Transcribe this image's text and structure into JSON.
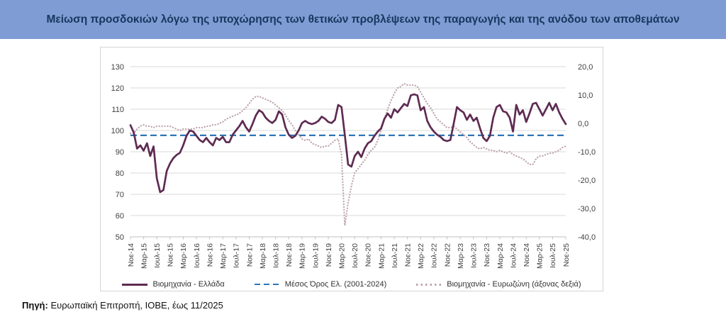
{
  "title": "Μείωση προσδοκιών λόγω της υποχώρησης των θετικών προβλέψεων της παραγωγής και της ανόδου των αποθεμάτων",
  "source": {
    "label": "Πηγή:",
    "text": " Ευρωπαϊκή Επιτροπή, ΙΟΒΕ, έως 11/2025"
  },
  "colors": {
    "banner_bg": "#7f9cd4",
    "banner_text": "#17375e",
    "grid": "#d9d9d9",
    "axis_line": "#bfbfbf",
    "axis_text": "#404040",
    "card_border": "#d4d4d4"
  },
  "chart_data": {
    "type": "line",
    "x_unit": "month",
    "x_start": "Νοε-14",
    "x_end": "Νοε-25",
    "x_tick_step": 4,
    "x_tick_labels": [
      "Νοε-14",
      "Μαρ-15",
      "Ιουλ-15",
      "Νοε-15",
      "Μαρ-16",
      "Ιουλ-16",
      "Νοε-16",
      "Μαρ-17",
      "Ιουλ-17",
      "Νοε-17",
      "Μαρ-18",
      "Ιουλ-18",
      "Νοε-18",
      "Μαρ-19",
      "Ιουλ-19",
      "Νοε-19",
      "Μαρ-20",
      "Ιουλ-20",
      "Νοε-20",
      "Μαρ-21",
      "Ιουλ-21",
      "Νοε-21",
      "Μαρ-22",
      "Ιουλ-22",
      "Νοε-22",
      "Μαρ-23",
      "Ιουλ-23",
      "Νοε-23",
      "Μαρ-24",
      "Ιουλ-24",
      "Νοε-24",
      "Μαρ-25",
      "Ιουλ-25",
      "Νοε-25"
    ],
    "left_axis": {
      "min": 50,
      "max": 130,
      "ticks": [
        130,
        120,
        110,
        100,
        90,
        80,
        70,
        60,
        50
      ]
    },
    "right_axis": {
      "min": -40,
      "max": 20,
      "ticks": [
        20,
        10,
        0,
        -10,
        -20,
        -30,
        -40
      ],
      "tick_labels": [
        "20,0",
        "10,0",
        "0,0",
        "-10,0",
        "-20,0",
        "-30,0",
        "-40,0"
      ]
    },
    "grid": true,
    "legend_position": "bottom",
    "series": [
      {
        "name": "Βιομηχανία - Ελλάδα",
        "axis": "left",
        "style": "solid",
        "color": "#5e2b52",
        "values": [
          102.5,
          99,
          91.5,
          93,
          90.5,
          94,
          88,
          92.5,
          77.5,
          71,
          72,
          81,
          84.5,
          87,
          88.5,
          89.5,
          93,
          97.5,
          100,
          99.5,
          97.5,
          95.5,
          94.5,
          96.5,
          94.5,
          93,
          96.5,
          95.5,
          97,
          94.5,
          94.5,
          98,
          100,
          102,
          104.5,
          101.5,
          99.5,
          103,
          107,
          109.5,
          108.5,
          106,
          104.5,
          103.5,
          105,
          109,
          107.5,
          101.5,
          98,
          96.5,
          97.5,
          100,
          103.5,
          104.5,
          103.5,
          103,
          103.5,
          104.5,
          106.5,
          105.5,
          104,
          103.5,
          105,
          112,
          111,
          98,
          84,
          83,
          88,
          90,
          87.5,
          91.5,
          94,
          95,
          97.5,
          99.5,
          101,
          105.5,
          108,
          106,
          110,
          108.5,
          110.5,
          112.5,
          111.5,
          116.5,
          117,
          116.5,
          109.5,
          111,
          104.5,
          101.5,
          99.5,
          98,
          97,
          95.5,
          95,
          95.5,
          103,
          111,
          109.5,
          108.5,
          105,
          107.5,
          104.5,
          106,
          101,
          96.5,
          95,
          97.5,
          106,
          111,
          112,
          109,
          108.5,
          106,
          99.5,
          112,
          107.5,
          109.5,
          104,
          108,
          112.5,
          113,
          110,
          107,
          110,
          113,
          109.5,
          112.5,
          108.5,
          105.5,
          103
        ]
      },
      {
        "name": "Μέσος Όρος Ελ. (2001-2024)",
        "axis": "left",
        "style": "dashed",
        "color": "#2e75b6",
        "constant": 97.7
      },
      {
        "name": "Βιομηχανία - Ευρωζώνη (άξονας δεξιά)",
        "axis": "right",
        "style": "dotted",
        "color": "#bfa5ad",
        "values": [
          -3.5,
          -3.5,
          -2,
          -1,
          -0.5,
          -1,
          -1,
          -1.5,
          -1,
          -1,
          -1,
          -1,
          -1,
          -1.5,
          -2,
          -2.5,
          -2,
          -2,
          -2,
          -2,
          -1.5,
          -1.5,
          -1.5,
          -1,
          -1,
          -0.5,
          -0.5,
          0,
          0.5,
          1.5,
          2,
          2.5,
          3,
          3.5,
          4.5,
          5.5,
          7,
          8.5,
          9.5,
          9.5,
          9,
          8.5,
          8,
          7.5,
          6.5,
          5.5,
          4.5,
          3,
          1,
          -0.5,
          -2.5,
          -4,
          -5.5,
          -6,
          -5.5,
          -7,
          -7.5,
          -8,
          -8.5,
          -8,
          -8,
          -7,
          -6,
          -5.5,
          -11,
          -36,
          -28,
          -22,
          -17.5,
          -16,
          -14.5,
          -13,
          -11,
          -9.5,
          -8.5,
          -6,
          -2.5,
          1.5,
          5,
          8,
          10.5,
          12.5,
          13,
          14,
          13.5,
          13.5,
          13.5,
          13,
          11,
          9,
          7,
          5.5,
          3.5,
          1.5,
          0.5,
          -0.5,
          -1.5,
          -1.5,
          -1,
          -2,
          -3,
          -4,
          -5,
          -6.5,
          -7.5,
          -8.5,
          -9,
          -8.5,
          -9,
          -9.5,
          -9.5,
          -10,
          -9.5,
          -10,
          -10.5,
          -10,
          -11,
          -11.5,
          -12,
          -12.5,
          -13.5,
          -14.5,
          -14.5,
          -12.5,
          -11.5,
          -11.5,
          -11,
          -10.5,
          -10.5,
          -10,
          -9.5,
          -8.5,
          -8
        ]
      }
    ]
  }
}
